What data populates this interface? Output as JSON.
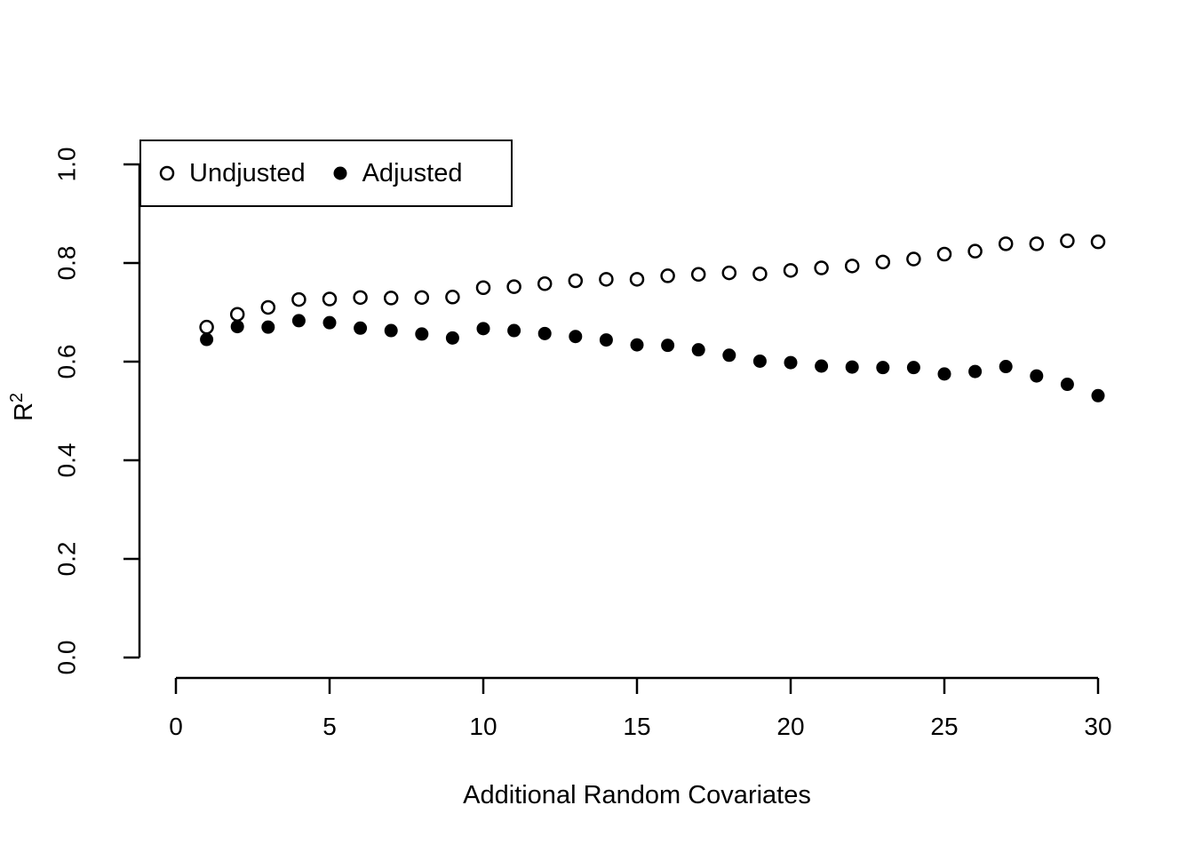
{
  "figure": {
    "background": "#ffffff",
    "foreground": "#000000"
  },
  "chart_data": {
    "type": "scatter",
    "title": "",
    "xlabel": "Additional Random Covariates",
    "ylabel": "R²",
    "ylabel_base": "R",
    "ylabel_sup": "2",
    "xlim": [
      0,
      30
    ],
    "ylim": [
      0.0,
      1.0
    ],
    "grid": false,
    "legend_position": "top-left",
    "x_ticks": [
      0,
      5,
      10,
      15,
      20,
      25,
      30
    ],
    "x_tick_labels": [
      "0",
      "5",
      "10",
      "15",
      "20",
      "25",
      "30"
    ],
    "y_ticks": [
      0.0,
      0.2,
      0.4,
      0.6,
      0.8,
      1.0
    ],
    "y_tick_labels": [
      "0.0",
      "0.2",
      "0.4",
      "0.6",
      "0.8",
      "1.0"
    ],
    "x": [
      1,
      2,
      3,
      4,
      5,
      6,
      7,
      8,
      9,
      10,
      11,
      12,
      13,
      14,
      15,
      16,
      17,
      18,
      19,
      20,
      21,
      22,
      23,
      24,
      25,
      26,
      27,
      28,
      29,
      30
    ],
    "series": [
      {
        "name": "Undjusted",
        "marker": "open-circle",
        "color": "#000000",
        "values": [
          0.67,
          0.696,
          0.71,
          0.726,
          0.727,
          0.73,
          0.729,
          0.73,
          0.731,
          0.75,
          0.752,
          0.758,
          0.764,
          0.767,
          0.767,
          0.774,
          0.777,
          0.78,
          0.778,
          0.785,
          0.79,
          0.794,
          0.802,
          0.808,
          0.818,
          0.824,
          0.839,
          0.839,
          0.845,
          0.843
        ]
      },
      {
        "name": "Adjusted",
        "marker": "filled-circle",
        "color": "#000000",
        "values": [
          0.645,
          0.671,
          0.67,
          0.683,
          0.679,
          0.668,
          0.663,
          0.656,
          0.648,
          0.667,
          0.663,
          0.657,
          0.651,
          0.644,
          0.634,
          0.633,
          0.624,
          0.613,
          0.601,
          0.598,
          0.591,
          0.589,
          0.588,
          0.588,
          0.575,
          0.58,
          0.59,
          0.571,
          0.554,
          0.531
        ]
      }
    ]
  }
}
